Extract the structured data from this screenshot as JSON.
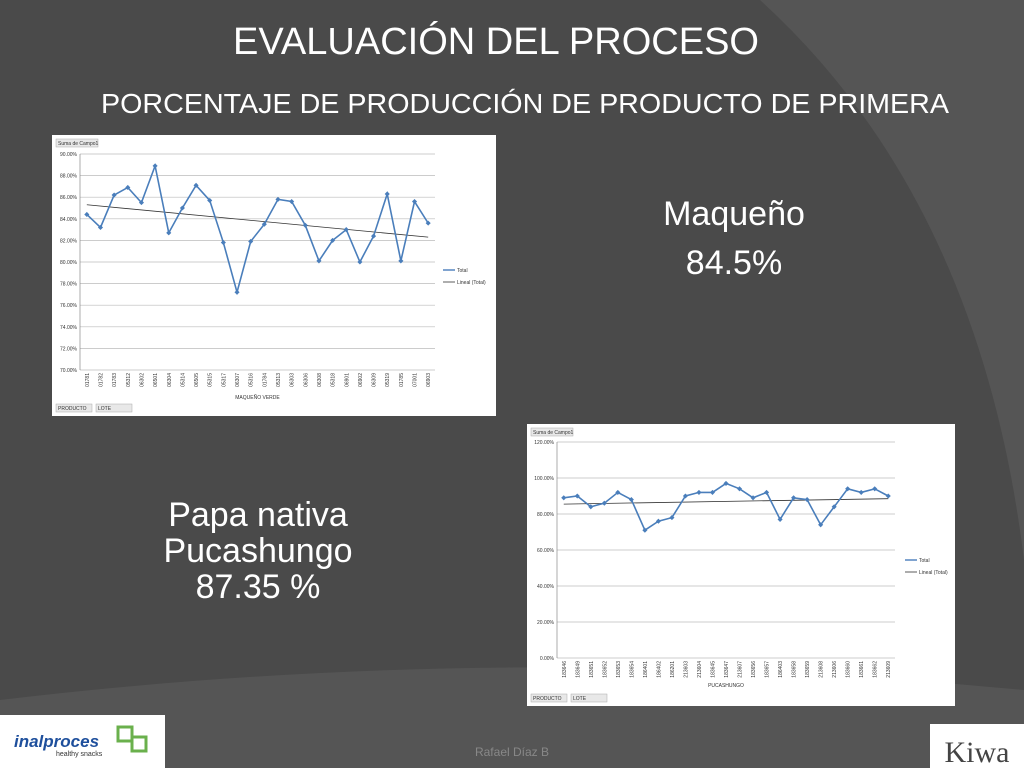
{
  "slide": {
    "title": "EVALUACIÓN DEL PROCESO",
    "subtitle": "PORCENTAJE DE PRODUCCIÓN DE PRODUCTO DE PRIMERA",
    "result_1": {
      "name": "Maqueño",
      "value": "84.5%"
    },
    "result_2": {
      "name_1": "Papa nativa",
      "name_2": "Pucashungo",
      "value": "87.35 %"
    },
    "footer": "Rafael Díaz B",
    "logo_left": {
      "name": "inalproces",
      "tagline": "healthy snacks"
    },
    "logo_right": "Kiwa"
  },
  "chart_data": [
    {
      "type": "line",
      "field_button": "Suma de Campo1",
      "xlabel": "MAQUEÑO VERDE",
      "filters": [
        "PRODUCTO",
        "LOTE"
      ],
      "categories": [
        "01781",
        "01782",
        "01783",
        "05312",
        "06302",
        "06501",
        "06304",
        "05314",
        "06505",
        "05315",
        "05317",
        "06307",
        "05316",
        "01784",
        "05313",
        "06303",
        "06306",
        "06308",
        "05318",
        "06901",
        "06902",
        "06309",
        "05319",
        "01785",
        "07001",
        "06903"
      ],
      "series": [
        {
          "name": "Total",
          "color": "#4a7ebb",
          "values": [
            84.4,
            83.2,
            86.2,
            86.9,
            85.5,
            88.9,
            82.7,
            85.0,
            87.1,
            85.7,
            81.8,
            77.2,
            81.9,
            83.5,
            85.8,
            85.6,
            83.4,
            80.1,
            82.0,
            83.0,
            80.0,
            82.4,
            86.3,
            80.1,
            85.6,
            83.6
          ]
        }
      ],
      "trendline": {
        "name": "Lineal (Total)",
        "color": "#333333",
        "start": 85.3,
        "end": 82.3
      },
      "ylim": [
        70,
        90
      ],
      "yticks": [
        {
          "value": 70,
          "label": "70.00%"
        },
        {
          "value": 72,
          "label": "72.00%"
        },
        {
          "value": 74,
          "label": "74.00%"
        },
        {
          "value": 76,
          "label": "76.00%"
        },
        {
          "value": 78,
          "label": "78.00%"
        },
        {
          "value": 80,
          "label": "80.00%"
        },
        {
          "value": 82,
          "label": "82.00%"
        },
        {
          "value": 84,
          "label": "84.00%"
        },
        {
          "value": 86,
          "label": "86.00%"
        },
        {
          "value": 88,
          "label": "88.00%"
        },
        {
          "value": 90,
          "label": "90.00%"
        }
      ],
      "grid": true,
      "legend": "right"
    },
    {
      "type": "line",
      "field_button": "Suma de Campo1",
      "xlabel": "PUCASHUNGO",
      "filters": [
        "PRODUCTO",
        "LOTE"
      ],
      "categories": [
        "183646",
        "183649",
        "183651",
        "183652",
        "183653",
        "183654",
        "186401",
        "186402",
        "186201",
        "213603",
        "213604",
        "183645",
        "183647",
        "213607",
        "183656",
        "183657",
        "186403",
        "183658",
        "183659",
        "213608",
        "213606",
        "183660",
        "183661",
        "183662",
        "213609"
      ],
      "series": [
        {
          "name": "Total",
          "color": "#4a7ebb",
          "values": [
            89,
            90,
            84,
            86,
            92,
            88,
            71,
            76,
            78,
            90,
            92,
            92,
            97,
            94,
            89,
            92,
            77,
            89,
            88,
            74,
            84,
            94,
            92,
            94,
            90
          ]
        }
      ],
      "trendline": {
        "name": "Lineal (Total)",
        "color": "#333333",
        "start": 85.5,
        "end": 88.5
      },
      "ylim": [
        0,
        120
      ],
      "yticks": [
        {
          "value": 0,
          "label": "0.00%"
        },
        {
          "value": 20,
          "label": "20.00%"
        },
        {
          "value": 40,
          "label": "40.00%"
        },
        {
          "value": 60,
          "label": "60.00%"
        },
        {
          "value": 80,
          "label": "80.00%"
        },
        {
          "value": 100,
          "label": "100.00%"
        },
        {
          "value": 120,
          "label": "120.00%"
        }
      ],
      "grid": true,
      "legend": "right"
    }
  ]
}
